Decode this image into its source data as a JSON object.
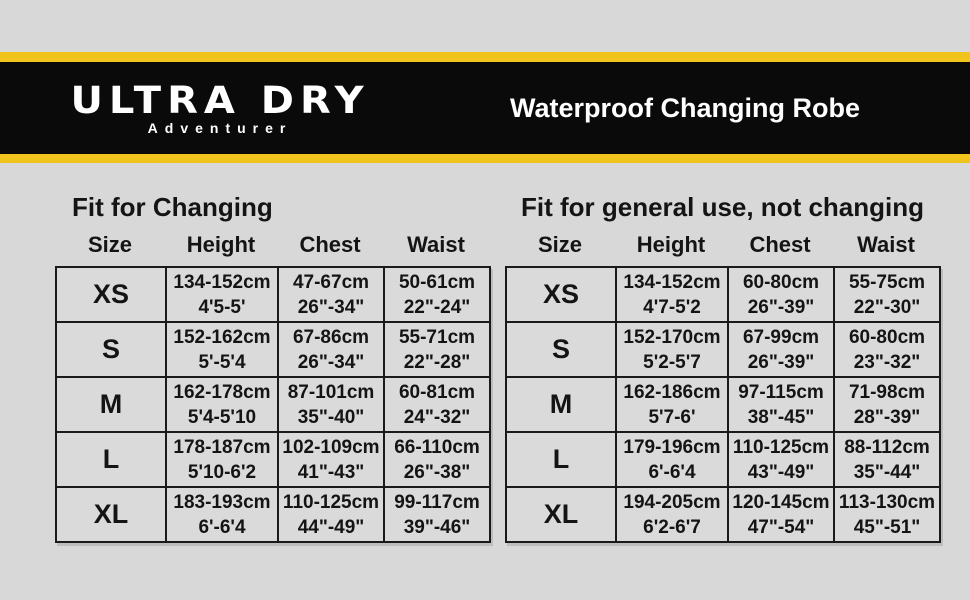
{
  "brand": {
    "name": "ULTRA DRY",
    "tagline": "Adventurer"
  },
  "header": {
    "product_title": "Waterproof Changing Robe"
  },
  "colors": {
    "background": "#d8d8d8",
    "banner_black": "#0a0a0a",
    "accent_yellow": "#f0c41d",
    "text": "#141414",
    "table_border": "#1a1a1a"
  },
  "tables": [
    {
      "title": "Fit for Changing",
      "columns": [
        "Size",
        "Height",
        "Chest",
        "Waist"
      ],
      "rows": [
        {
          "size": "XS",
          "height": [
            "134-152cm",
            "4'5-5'"
          ],
          "chest": [
            "47-67cm",
            "26\"-34\""
          ],
          "waist": [
            "50-61cm",
            "22\"-24\""
          ]
        },
        {
          "size": "S",
          "height": [
            "152-162cm",
            "5'-5'4"
          ],
          "chest": [
            "67-86cm",
            "26\"-34\""
          ],
          "waist": [
            "55-71cm",
            "22\"-28\""
          ]
        },
        {
          "size": "M",
          "height": [
            "162-178cm",
            "5'4-5'10"
          ],
          "chest": [
            "87-101cm",
            "35\"-40\""
          ],
          "waist": [
            "60-81cm",
            "24\"-32\""
          ]
        },
        {
          "size": "L",
          "height": [
            "178-187cm",
            "5'10-6'2"
          ],
          "chest": [
            "102-109cm",
            "41\"-43\""
          ],
          "waist": [
            "66-110cm",
            "26\"-38\""
          ]
        },
        {
          "size": "XL",
          "height": [
            "183-193cm",
            "6'-6'4"
          ],
          "chest": [
            "110-125cm",
            "44\"-49\""
          ],
          "waist": [
            "99-117cm",
            "39\"-46\""
          ]
        }
      ]
    },
    {
      "title": "Fit for general use, not changing",
      "columns": [
        "Size",
        "Height",
        "Chest",
        "Waist"
      ],
      "rows": [
        {
          "size": "XS",
          "height": [
            "134-152cm",
            "4'7-5'2"
          ],
          "chest": [
            "60-80cm",
            "26\"-39\""
          ],
          "waist": [
            "55-75cm",
            "22\"-30\""
          ]
        },
        {
          "size": "S",
          "height": [
            "152-170cm",
            "5'2-5'7"
          ],
          "chest": [
            "67-99cm",
            "26\"-39\""
          ],
          "waist": [
            "60-80cm",
            "23\"-32\""
          ]
        },
        {
          "size": "M",
          "height": [
            "162-186cm",
            "5'7-6'"
          ],
          "chest": [
            "97-115cm",
            "38\"-45\""
          ],
          "waist": [
            "71-98cm",
            "28\"-39\""
          ]
        },
        {
          "size": "L",
          "height": [
            "179-196cm",
            "6'-6'4"
          ],
          "chest": [
            "110-125cm",
            "43\"-49\""
          ],
          "waist": [
            "88-112cm",
            "35\"-44\""
          ]
        },
        {
          "size": "XL",
          "height": [
            "194-205cm",
            "6'2-6'7"
          ],
          "chest": [
            "120-145cm",
            "47\"-54\""
          ],
          "waist": [
            "113-130cm",
            "45\"-51\""
          ]
        }
      ]
    }
  ]
}
